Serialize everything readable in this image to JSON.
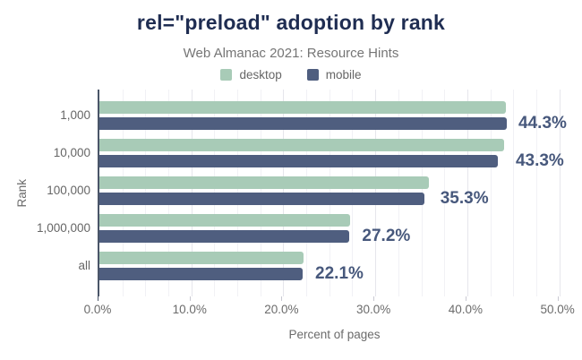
{
  "header": {
    "title": "rel=\"preload\" adoption by rank",
    "subtitle": "Web Almanac 2021: Resource Hints"
  },
  "legend": {
    "items": [
      {
        "label": "desktop",
        "color": "#a8cbb7"
      },
      {
        "label": "mobile",
        "color": "#4f5e7f"
      }
    ]
  },
  "chart_data": {
    "type": "bar",
    "orientation": "horizontal",
    "title": "rel=\"preload\" adoption by rank",
    "subtitle": "Web Almanac 2021: Resource Hints",
    "xlabel": "Percent of pages",
    "ylabel": "Rank",
    "categories": [
      "1,000",
      "10,000",
      "100,000",
      "1,000,000",
      "all"
    ],
    "series": [
      {
        "name": "desktop",
        "color": "#a8cbb7",
        "values": [
          44.2,
          44.0,
          35.8,
          27.3,
          22.2
        ]
      },
      {
        "name": "mobile",
        "color": "#4f5e7f",
        "values": [
          44.3,
          43.3,
          35.3,
          27.2,
          22.1
        ]
      }
    ],
    "value_labels": [
      "44.3%",
      "43.3%",
      "35.3%",
      "27.2%",
      "22.1%"
    ],
    "value_label_series": "mobile",
    "xlim": [
      0,
      51.5
    ],
    "x_ticks": [
      {
        "value": 0,
        "label": "0.0%"
      },
      {
        "value": 10,
        "label": "10.0%"
      },
      {
        "value": 20,
        "label": "20.0%"
      },
      {
        "value": 30,
        "label": "30.0%"
      },
      {
        "value": 40,
        "label": "40.0%"
      },
      {
        "value": 50,
        "label": "50.0%"
      }
    ],
    "minor_grid_step": 2.5,
    "grid": true,
    "legend_position": "top"
  },
  "colors": {
    "title": "#1f2d52",
    "subtitle": "#757575",
    "axis_text": "#6b6b6b",
    "value_label": "#47587c",
    "axis_line": "#4a5568",
    "grid_major": "#e6e6ec",
    "grid_minor": "#f1f1f5",
    "background": "#ffffff"
  }
}
